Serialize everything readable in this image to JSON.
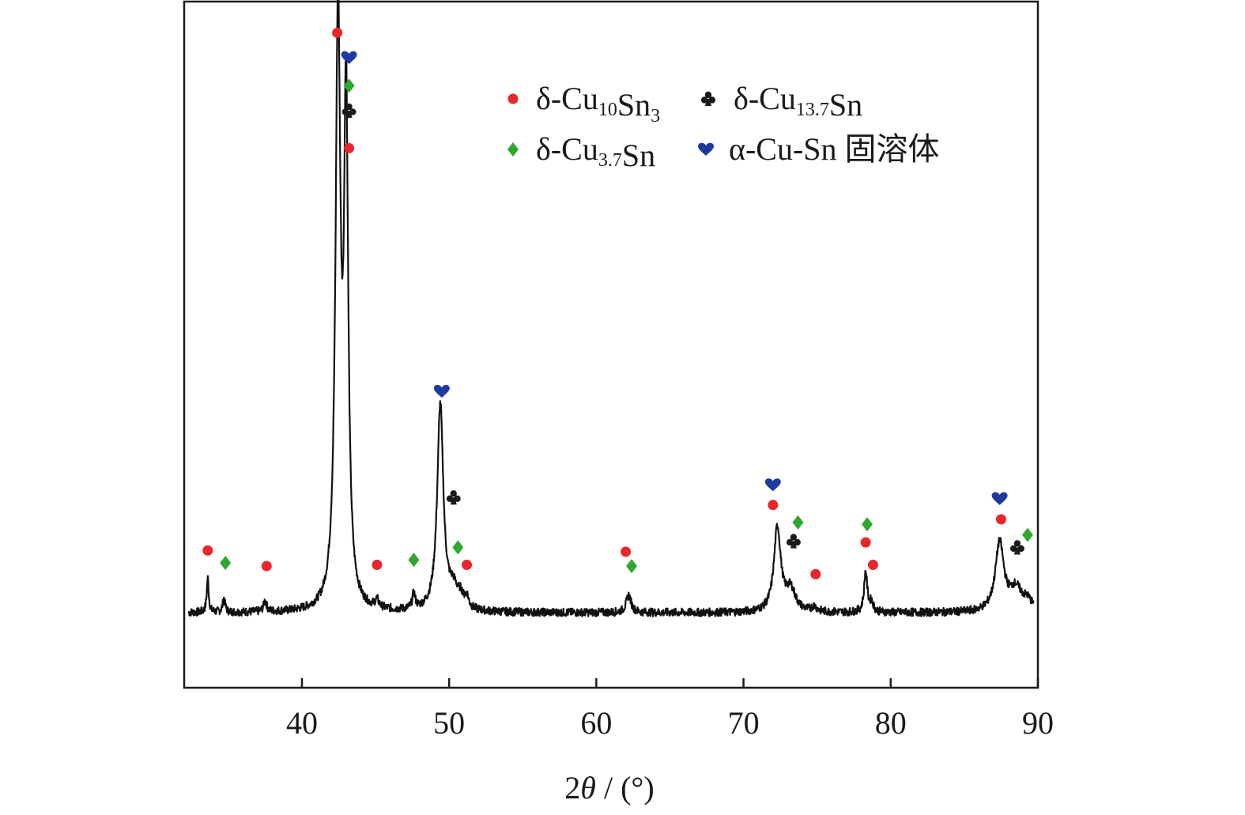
{
  "chart_data": {
    "type": "line",
    "title": "",
    "xlabel": {
      "prefix": "2",
      "theta": "θ",
      "suffix": " / (°)"
    },
    "ylabel": "",
    "xlim": [
      32,
      90
    ],
    "ylim": [
      0,
      110
    ],
    "x_ticks": [
      40,
      50,
      60,
      70,
      80,
      90
    ],
    "grid": false,
    "legend": {
      "placement": "top-right",
      "entries": [
        {
          "phase": "Cu10Sn3",
          "marker": "circle",
          "color": "#e8262b",
          "label": {
            "pre": "δ-Cu",
            "sub": "10",
            "post": "Sn",
            "sub2": "3"
          }
        },
        {
          "phase": "Cu13.7Sn",
          "marker": "club",
          "color": "#1a1a1a",
          "label": {
            "pre": "δ-Cu",
            "sub": "13.7",
            "post": "Sn",
            "sub2": ""
          }
        },
        {
          "phase": "Cu3.7Sn",
          "marker": "diamond",
          "color": "#2ea82e",
          "label": {
            "pre": "δ-Cu",
            "sub": "3.7",
            "post": "Sn",
            "sub2": ""
          }
        },
        {
          "phase": "alpha",
          "marker": "heart",
          "color": "#1f3a9e",
          "label": {
            "pre": "α-Cu-Sn 固溶体",
            "sub": "",
            "post": "",
            "sub2": ""
          }
        }
      ]
    },
    "baseline": 12,
    "peaks": [
      {
        "x": 33.6,
        "h": 5.5,
        "w": 0.08
      },
      {
        "x": 34.7,
        "h": 2.2,
        "w": 0.1
      },
      {
        "x": 37.5,
        "h": 1.8,
        "w": 0.12
      },
      {
        "x": 42.45,
        "h": 94,
        "w": 0.2
      },
      {
        "x": 43.0,
        "h": 79,
        "w": 0.17
      },
      {
        "x": 45.1,
        "h": 1.2,
        "w": 0.15
      },
      {
        "x": 47.6,
        "h": 2.4,
        "w": 0.12
      },
      {
        "x": 49.4,
        "h": 33,
        "w": 0.25
      },
      {
        "x": 50.3,
        "h": 3.2,
        "w": 0.4
      },
      {
        "x": 50.8,
        "h": 1.5,
        "w": 0.2
      },
      {
        "x": 51.2,
        "h": 1.8,
        "w": 0.15
      },
      {
        "x": 62.2,
        "h": 2.8,
        "w": 0.2
      },
      {
        "x": 72.3,
        "h": 13.5,
        "w": 0.28
      },
      {
        "x": 73.2,
        "h": 3.5,
        "w": 0.4
      },
      {
        "x": 74.8,
        "h": 0.8,
        "w": 0.2
      },
      {
        "x": 78.3,
        "h": 6.5,
        "w": 0.13
      },
      {
        "x": 78.7,
        "h": 1.5,
        "w": 0.15
      },
      {
        "x": 87.4,
        "h": 11,
        "w": 0.35
      },
      {
        "x": 88.5,
        "h": 3.5,
        "w": 0.5
      },
      {
        "x": 89.3,
        "h": 1.5,
        "w": 0.4
      }
    ],
    "markers": [
      {
        "phase": "Cu10Sn3",
        "x": 33.6,
        "y": 22
      },
      {
        "phase": "Cu3.7Sn",
        "x": 34.8,
        "y": 20
      },
      {
        "phase": "Cu10Sn3",
        "x": 37.6,
        "y": 19.5
      },
      {
        "phase": "Cu10Sn3",
        "x": 42.4,
        "y": 105
      },
      {
        "phase": "alpha",
        "x": 43.2,
        "y": 101
      },
      {
        "phase": "Cu3.7Sn",
        "x": 43.2,
        "y": 96.5
      },
      {
        "phase": "Cu13.7Sn",
        "x": 43.2,
        "y": 92.5
      },
      {
        "phase": "Cu10Sn3",
        "x": 43.2,
        "y": 86.5
      },
      {
        "phase": "Cu10Sn3",
        "x": 45.1,
        "y": 19.7
      },
      {
        "phase": "Cu3.7Sn",
        "x": 47.6,
        "y": 20.5
      },
      {
        "phase": "alpha",
        "x": 49.5,
        "y": 47.5
      },
      {
        "phase": "Cu13.7Sn",
        "x": 50.3,
        "y": 30.5
      },
      {
        "phase": "Cu3.7Sn",
        "x": 50.6,
        "y": 22.5
      },
      {
        "phase": "Cu10Sn3",
        "x": 51.2,
        "y": 19.7
      },
      {
        "phase": "Cu10Sn3",
        "x": 62.0,
        "y": 21.8
      },
      {
        "phase": "Cu3.7Sn",
        "x": 62.4,
        "y": 19.5
      },
      {
        "phase": "alpha",
        "x": 72.0,
        "y": 32.5
      },
      {
        "phase": "Cu10Sn3",
        "x": 72.0,
        "y": 29.3
      },
      {
        "phase": "Cu3.7Sn",
        "x": 73.7,
        "y": 26.5
      },
      {
        "phase": "Cu13.7Sn",
        "x": 73.4,
        "y": 23.5
      },
      {
        "phase": "Cu10Sn3",
        "x": 74.9,
        "y": 18.2
      },
      {
        "phase": "Cu3.7Sn",
        "x": 78.4,
        "y": 26.2
      },
      {
        "phase": "Cu10Sn3",
        "x": 78.3,
        "y": 23.3
      },
      {
        "phase": "Cu10Sn3",
        "x": 78.8,
        "y": 19.7
      },
      {
        "phase": "alpha",
        "x": 87.4,
        "y": 30.3
      },
      {
        "phase": "Cu10Sn3",
        "x": 87.5,
        "y": 27
      },
      {
        "phase": "Cu3.7Sn",
        "x": 89.3,
        "y": 24.5
      },
      {
        "phase": "Cu13.7Sn",
        "x": 88.6,
        "y": 22.5
      }
    ]
  }
}
